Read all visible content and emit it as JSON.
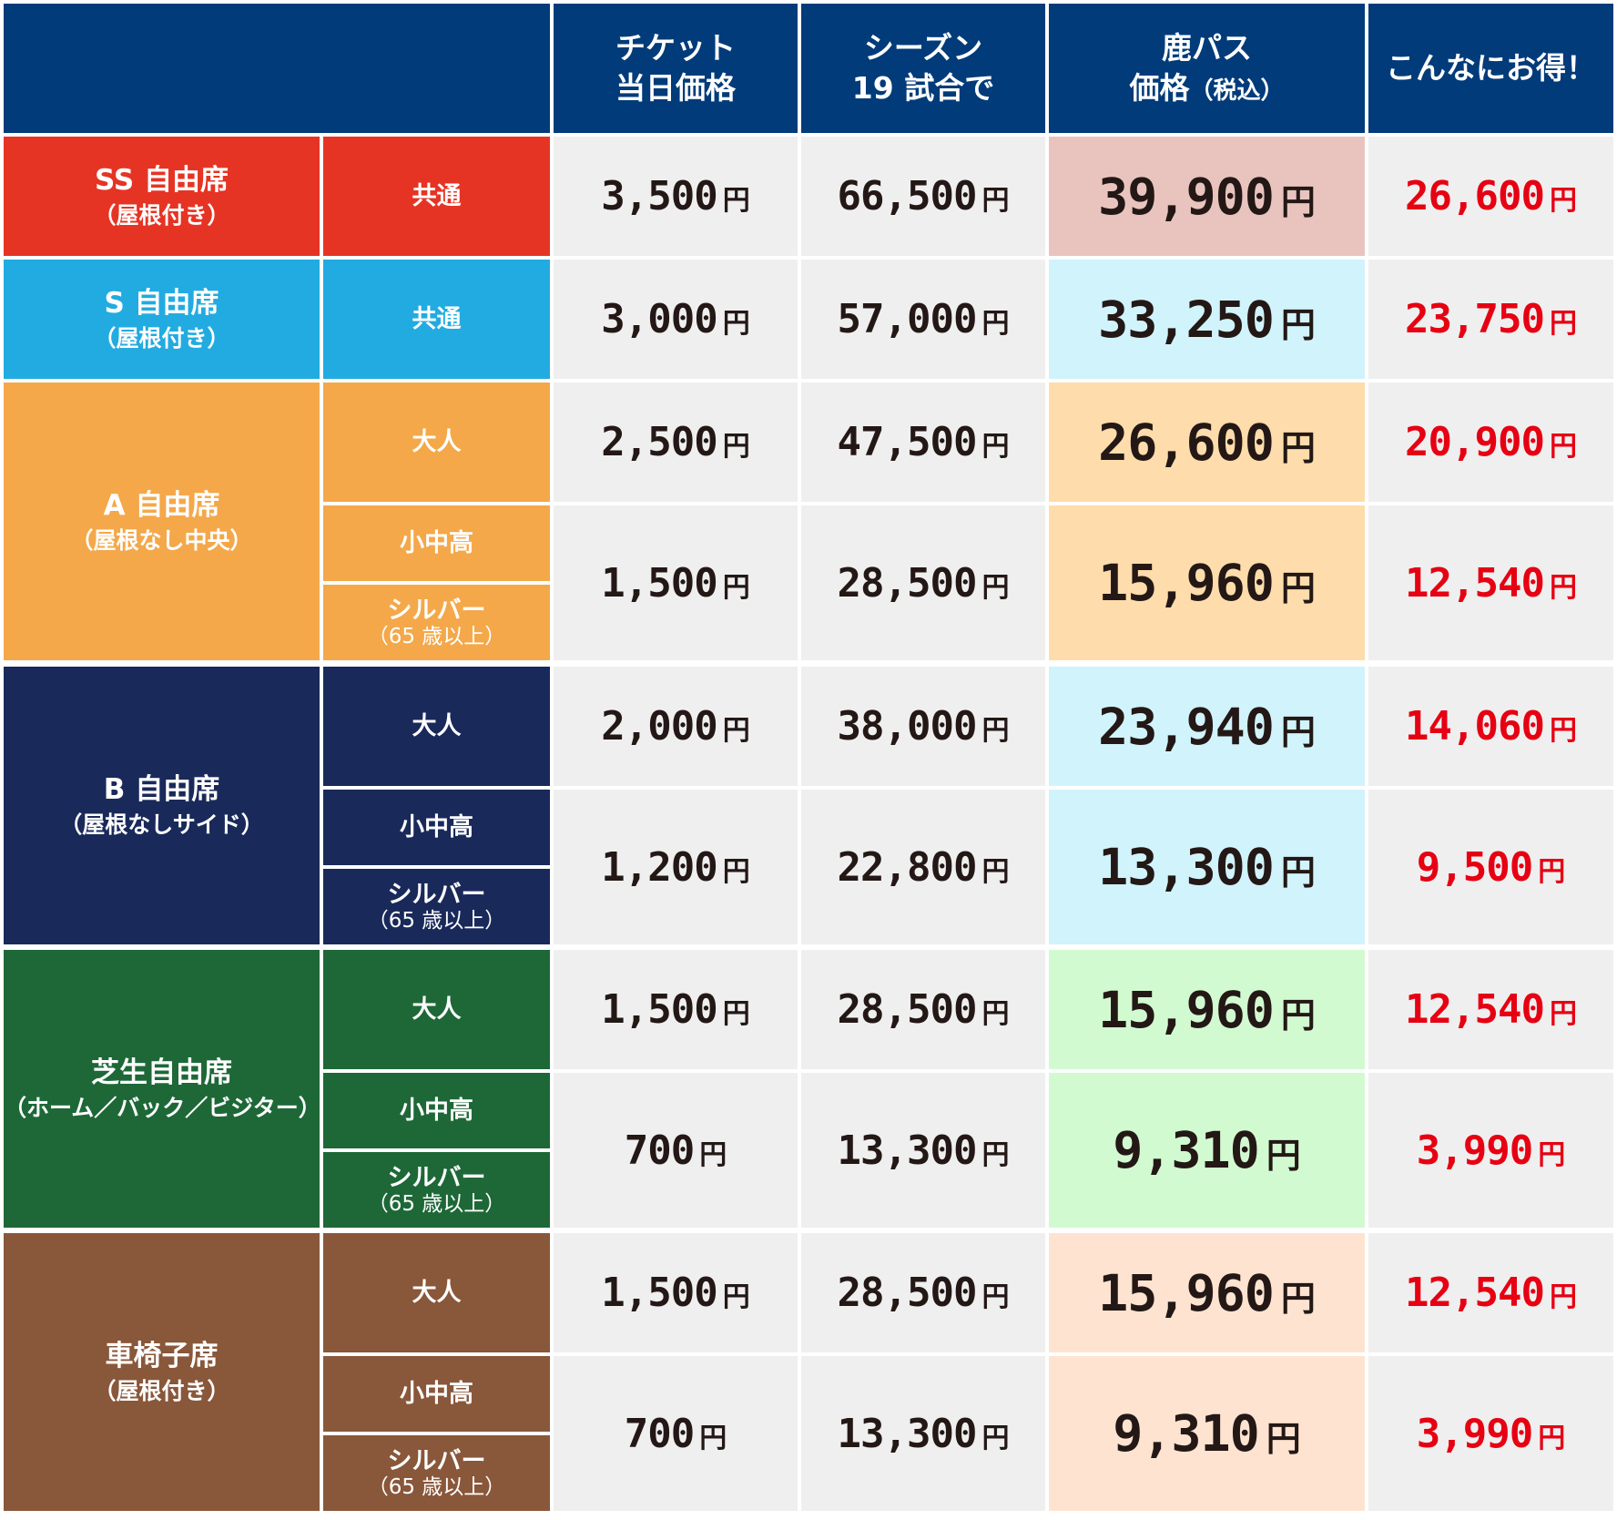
{
  "header": {
    "h1": [
      "チケット",
      "当日価格"
    ],
    "h2": [
      "シーズン",
      "19 試合で"
    ],
    "h3": [
      "鹿パス",
      "価格",
      "（税込）"
    ],
    "h4": "こんなにお得！"
  },
  "currency": "円",
  "groups": [
    {
      "name": "SS 自由席",
      "note": "（屋根付き）",
      "color": "#e63424",
      "rows": [
        {
          "labels": [
            {
              "t": "共通"
            }
          ],
          "ticket": "3,500",
          "season": "66,500",
          "pass": "39,900",
          "pass_bg": "#e9c4bf",
          "save": "26,600"
        }
      ]
    },
    {
      "name": "S 自由席",
      "note": "（屋根付き）",
      "color": "#22abe0",
      "rows": [
        {
          "labels": [
            {
              "t": "共通"
            }
          ],
          "ticket": "3,000",
          "season": "57,000",
          "pass": "33,250",
          "pass_bg": "#d0f3fc",
          "save": "23,750"
        }
      ]
    },
    {
      "name": "A 自由席",
      "note": "（屋根なし中央）",
      "color": "#f4a84a",
      "rows": [
        {
          "labels": [
            {
              "t": "大人"
            }
          ],
          "ticket": "2,500",
          "season": "47,500",
          "pass": "26,600",
          "pass_bg": "#ffdcab",
          "save": "20,900"
        },
        {
          "labels": [
            {
              "t": "小中高"
            },
            {
              "t": "シルバー",
              "s": "（65 歳以上）"
            }
          ],
          "ticket": "1,500",
          "season": "28,500",
          "pass": "15,960",
          "pass_bg": "#ffdcab",
          "save": "12,540"
        }
      ]
    },
    {
      "name": "B 自由席",
      "note": "（屋根なしサイド）",
      "color": "#19295a",
      "rows": [
        {
          "labels": [
            {
              "t": "大人"
            }
          ],
          "ticket": "2,000",
          "season": "38,000",
          "pass": "23,940",
          "pass_bg": "#d0f3fc",
          "save": "14,060"
        },
        {
          "labels": [
            {
              "t": "小中高"
            },
            {
              "t": "シルバー",
              "s": "（65 歳以上）"
            }
          ],
          "ticket": "1,200",
          "season": "22,800",
          "pass": "13,300",
          "pass_bg": "#d0f3fc",
          "save": "9,500"
        }
      ]
    },
    {
      "name": "芝生自由席",
      "note": "（ホーム／バック／ビジター）",
      "color": "#1e6838",
      "rows": [
        {
          "labels": [
            {
              "t": "大人"
            }
          ],
          "ticket": "1,500",
          "season": "28,500",
          "pass": "15,960",
          "pass_bg": "#d2fad1",
          "save": "12,540"
        },
        {
          "labels": [
            {
              "t": "小中高"
            },
            {
              "t": "シルバー",
              "s": "（65 歳以上）"
            }
          ],
          "ticket": "700",
          "season": "13,300",
          "pass": "9,310",
          "pass_bg": "#d2fad1",
          "save": "3,990"
        }
      ]
    },
    {
      "name": "車椅子席",
      "note": "（屋根付き）",
      "color": "#89573a",
      "rows": [
        {
          "labels": [
            {
              "t": "大人"
            }
          ],
          "ticket": "1,500",
          "season": "28,500",
          "pass": "15,960",
          "pass_bg": "#fee3d1",
          "save": "12,540"
        },
        {
          "labels": [
            {
              "t": "小中高"
            },
            {
              "t": "シルバー",
              "s": "（65 歳以上）"
            }
          ],
          "ticket": "700",
          "season": "13,300",
          "pass": "9,310",
          "pass_bg": "#fee3d1",
          "save": "3,990"
        }
      ]
    }
  ]
}
